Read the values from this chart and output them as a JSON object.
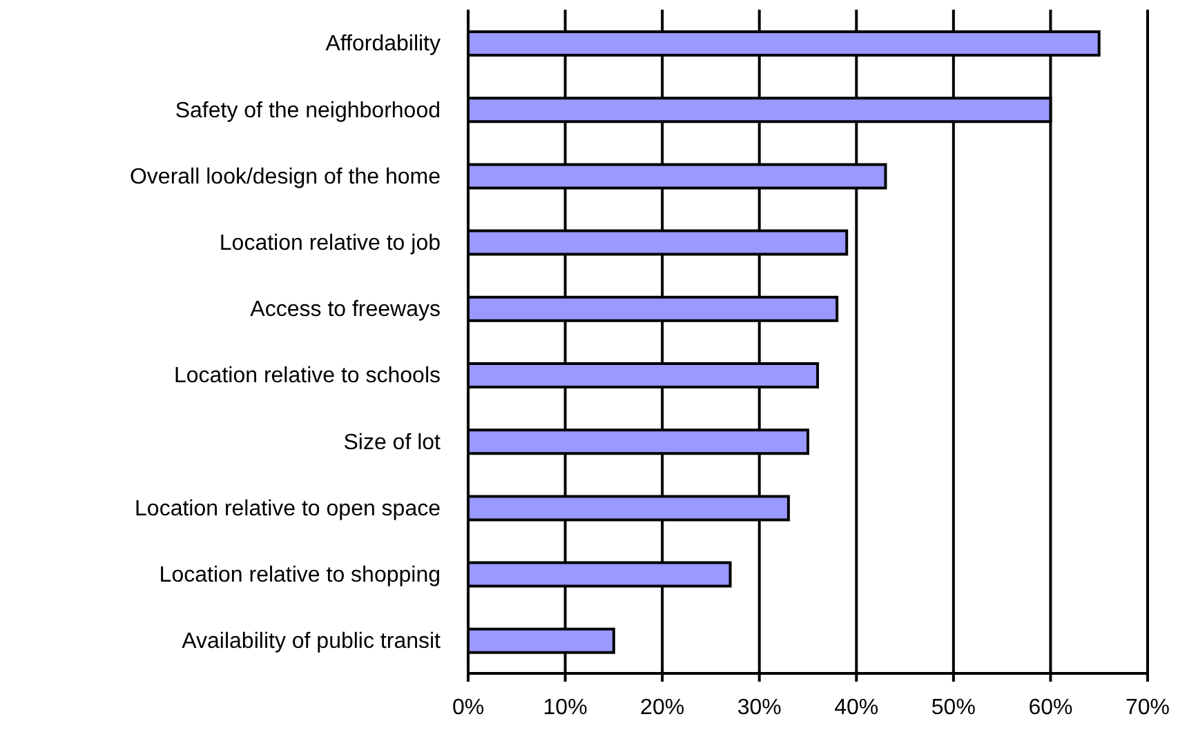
{
  "chart_data": {
    "type": "bar",
    "orientation": "horizontal",
    "categories": [
      "Affordability",
      "Safety of the neighborhood",
      "Overall look/design of the home",
      "Location relative to job",
      "Access to freeways",
      "Location relative to schools",
      "Size of lot",
      "Location relative to open space",
      "Location relative to shopping",
      "Availability of public transit"
    ],
    "values": [
      65,
      60,
      43,
      39,
      38,
      36,
      35,
      33,
      27,
      15
    ],
    "color": "#9999ff",
    "xlim": [
      0,
      70
    ],
    "xticks": [
      {
        "value": 0,
        "label": "0%"
      },
      {
        "value": 10,
        "label": "10%"
      },
      {
        "value": 20,
        "label": "20%"
      },
      {
        "value": 30,
        "label": "30%"
      },
      {
        "value": 40,
        "label": "40%"
      },
      {
        "value": 50,
        "label": "50%"
      },
      {
        "value": 60,
        "label": "60%"
      },
      {
        "value": 70,
        "label": "70%"
      }
    ],
    "grid": "x",
    "legend": false
  }
}
